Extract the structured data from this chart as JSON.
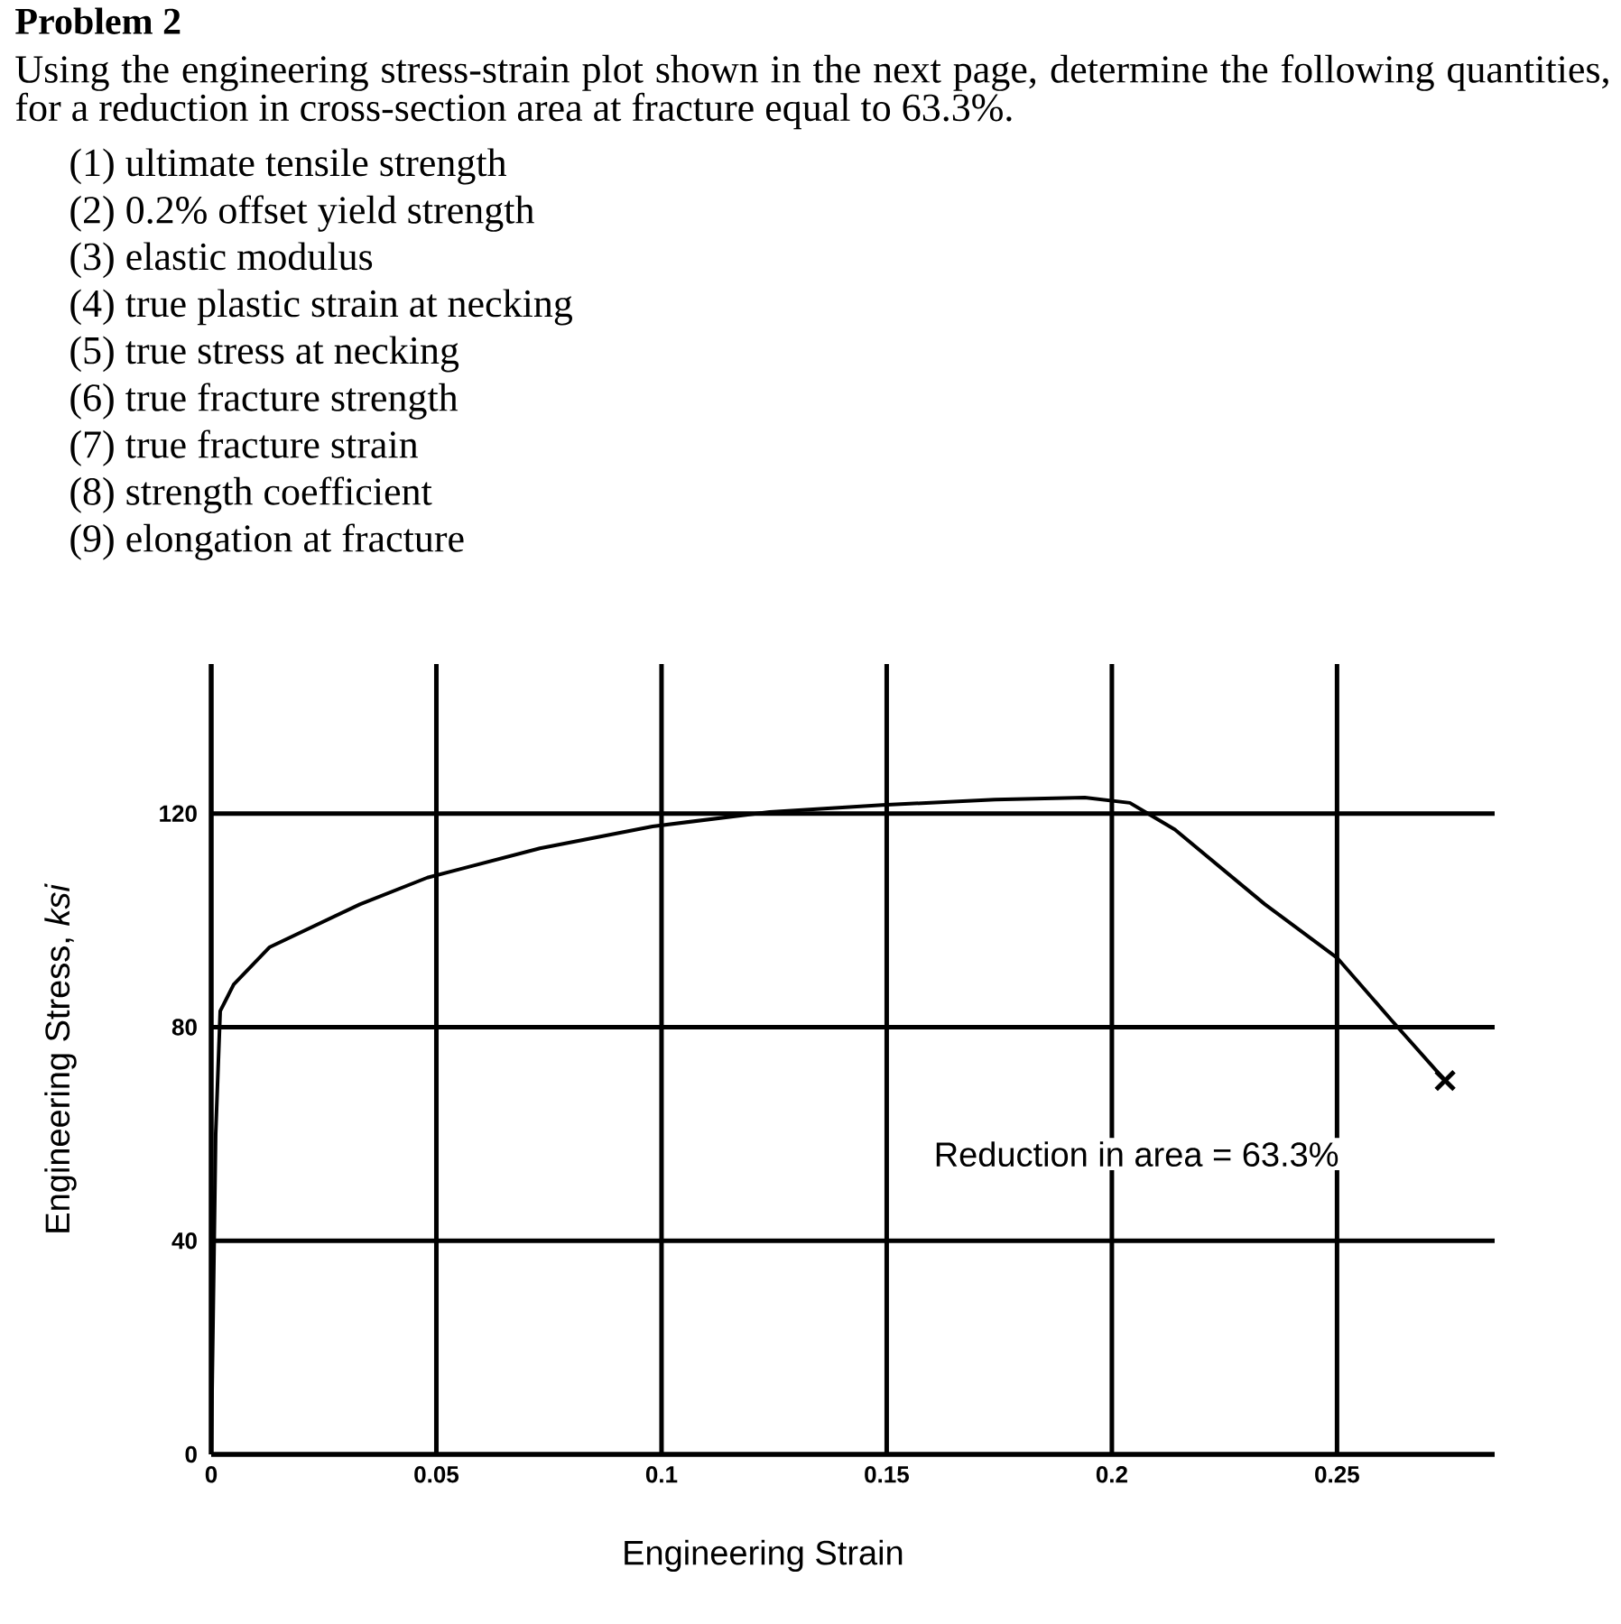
{
  "chart_data": {
    "type": "line",
    "title": "Problem 2",
    "subtitle": "Using the engineering stress-strain plot shown in the next page, determine the following quantities, for a reduction in cross-section area at fracture equal to 63.3%.",
    "annotations": [
      "(1) ultimate tensile strength",
      "(2) 0.2% offset yield strength",
      "(3) elastic modulus",
      "(4) true plastic strain at necking",
      "(5) true stress at necking",
      "(6) true fracture strength",
      "(7) true fracture strain",
      "(8) strength coefficient",
      "(9) elongation at fracture",
      "Reduction in area = 63.3%"
    ],
    "xlabel": "Engineering Strain",
    "ylabel": "Engineering Stress, *ksi*",
    "xlim": [
      0,
      0.285
    ],
    "ylim": [
      0,
      148
    ],
    "xticks": [
      0,
      0.05,
      0.1,
      0.15,
      0.2,
      0.25
    ],
    "yticks": [
      0,
      40,
      80,
      120
    ],
    "grid": true,
    "series": [
      {
        "color": "#000000",
        "marker": "none",
        "x": [
          0,
          0.001,
          0.002,
          0.005,
          0.013,
          0.033,
          0.048,
          0.073,
          0.098,
          0.124,
          0.149,
          0.174,
          0.194,
          0.204,
          0.214,
          0.234,
          0.25,
          0.262,
          0.274
        ],
        "values": [
          0,
          60,
          83,
          88,
          95,
          103,
          108,
          113.5,
          117.6,
          120.3,
          121.6,
          122.6,
          123,
          122,
          117,
          103,
          93,
          81.4,
          70
        ]
      },
      {
        "type": "scatter",
        "color": "#000000",
        "marker": "cross",
        "x": [
          0.274
        ],
        "values": [
          70
        ]
      }
    ]
  }
}
